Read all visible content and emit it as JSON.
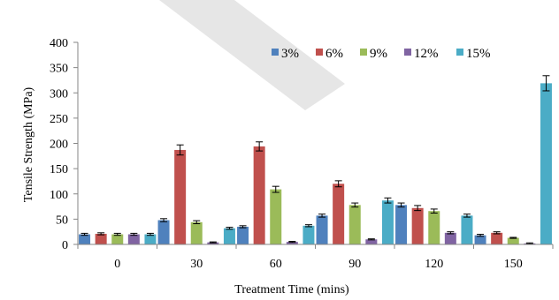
{
  "colors": {
    "3%": "#4F81BD",
    "6%": "#C0504D",
    "9%": "#9BBB59",
    "12%": "#8064A2",
    "15%": "#4BACC6",
    "watermark": "#E6E6E6"
  },
  "chart_data": {
    "type": "bar",
    "xlabel": "Treatment Time (mins)",
    "ylabel": "Tensile Strength (MPa)",
    "ylim": [
      0,
      400
    ],
    "yticks": [
      "0",
      "50",
      "100",
      "150",
      "200",
      "250",
      "300",
      "350",
      "400"
    ],
    "categories": [
      "0",
      "30",
      "60",
      "90",
      "120",
      "150"
    ],
    "grid": false,
    "legend_position": "top",
    "error_bars": true,
    "series": [
      {
        "name": "3%",
        "values": [
          20,
          48,
          35,
          57,
          78,
          18
        ],
        "errors": [
          2,
          3,
          2,
          3,
          4,
          2
        ]
      },
      {
        "name": "6%",
        "values": [
          21,
          187,
          194,
          120,
          72,
          23
        ],
        "errors": [
          2,
          10,
          9,
          6,
          5,
          2
        ]
      },
      {
        "name": "9%",
        "values": [
          20,
          44,
          109,
          78,
          66,
          13
        ],
        "errors": [
          2,
          3,
          6,
          4,
          4,
          1
        ]
      },
      {
        "name": "12%",
        "values": [
          20,
          4,
          5,
          10,
          23,
          2
        ],
        "errors": [
          2,
          1,
          1,
          1,
          2,
          1
        ]
      },
      {
        "name": "15%",
        "values": [
          20,
          32,
          37,
          87,
          57,
          319
        ],
        "errors": [
          2,
          2,
          2,
          5,
          3,
          15
        ]
      }
    ]
  }
}
